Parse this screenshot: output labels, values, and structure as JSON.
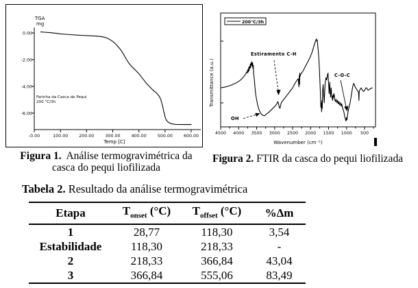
{
  "figure1_caption": {
    "label": "Figura 1.",
    "line1": "Análise termogravimétrica da",
    "line2": "casca do pequi liofilizada"
  },
  "figure2_caption": {
    "label": "Figura 2.",
    "text": " FTIR da  casca do pequi liofilizada"
  },
  "table": {
    "title_label": "Tabela 2.",
    "title_text": " Resultado da análise termogravimétrica",
    "headers": {
      "etapa": "Etapa",
      "tonset": {
        "pre": "T",
        "sub": "onset",
        "post": " (°C)"
      },
      "toffset": {
        "pre": "T",
        "sub": "offset",
        "post": " (°C)"
      },
      "dm": "%Δm"
    },
    "rows": [
      [
        "1",
        "28,77",
        "118,30",
        "3,54"
      ],
      [
        "Estabilidade",
        "118,30",
        "218,33",
        "-"
      ],
      [
        "2",
        "218,33",
        "366,84",
        "43,04"
      ],
      [
        "3",
        "366,84",
        "555,06",
        "83,49"
      ]
    ]
  },
  "chart_data": [
    {
      "type": "line",
      "title": "TGA",
      "y_axis_title_line1": "TGA",
      "y_axis_title_line2": "mg",
      "xlabel": "Temp  [C]",
      "ylabel": "TGA (mg)",
      "xlim": [
        0,
        600
      ],
      "ylim": [
        -7,
        0.5
      ],
      "x_ticks": [
        "-0.00",
        "100.00",
        "200.00",
        "300.00",
        "400.00",
        "500.00",
        "600.00"
      ],
      "y_ticks": [
        "0.00",
        "-2.00",
        "-4.00",
        "-6.00"
      ],
      "annotation": [
        "Farinha da Casca de Pequi",
        "200 °C/3h"
      ],
      "grid": false,
      "series": [
        {
          "name": "Farinha da Casca de Pequi 200 °C/3h",
          "points": [
            [
              25,
              0.07
            ],
            [
              40,
              0.05
            ],
            [
              60,
              0.02
            ],
            [
              80,
              -0.02
            ],
            [
              100,
              -0.07
            ],
            [
              120,
              -0.1
            ],
            [
              140,
              -0.13
            ],
            [
              160,
              -0.16
            ],
            [
              180,
              -0.18
            ],
            [
              200,
              -0.2
            ],
            [
              220,
              -0.22
            ],
            [
              240,
              -0.24
            ],
            [
              255,
              -0.27
            ],
            [
              270,
              -0.33
            ],
            [
              285,
              -0.45
            ],
            [
              300,
              -0.63
            ],
            [
              315,
              -0.9
            ],
            [
              330,
              -1.25
            ],
            [
              340,
              -1.55
            ],
            [
              350,
              -1.9
            ],
            [
              358,
              -2.15
            ],
            [
              365,
              -2.35
            ],
            [
              372,
              -2.5
            ],
            [
              380,
              -2.65
            ],
            [
              390,
              -2.85
            ],
            [
              400,
              -3.05
            ],
            [
              410,
              -3.3
            ],
            [
              420,
              -3.55
            ],
            [
              430,
              -3.8
            ],
            [
              440,
              -4.0
            ],
            [
              450,
              -4.2
            ],
            [
              458,
              -4.35
            ],
            [
              465,
              -4.45
            ],
            [
              472,
              -4.6
            ],
            [
              478,
              -4.75
            ],
            [
              483,
              -4.95
            ],
            [
              487,
              -5.2
            ],
            [
              491,
              -5.5
            ],
            [
              495,
              -5.85
            ],
            [
              499,
              -6.2
            ],
            [
              503,
              -6.45
            ],
            [
              508,
              -6.6
            ],
            [
              515,
              -6.72
            ],
            [
              525,
              -6.8
            ],
            [
              540,
              -6.84
            ],
            [
              560,
              -6.85
            ],
            [
              600,
              -6.85
            ]
          ]
        }
      ]
    },
    {
      "type": "line",
      "title": "FTIR",
      "xlabel": "Wavenumber (cm⁻¹)",
      "ylabel": "Transmittance (a.u.)",
      "x_axis_reversed": true,
      "xlim": [
        4600,
        350
      ],
      "x_ticks": [
        "4500",
        "4000",
        "3500",
        "3000",
        "2500",
        "2000",
        "1500",
        "1000",
        "500"
      ],
      "legend": [
        "200°C/3h"
      ],
      "legend_position": "top-left",
      "annotations": {
        "estiramento": "Estiramento C-H",
        "oh": "OH",
        "coc": "C-O-C"
      },
      "grid": false,
      "series": [
        {
          "name": "200°C/3h",
          "points": [
            [
              4600,
              33
            ],
            [
              4450,
              34
            ],
            [
              4300,
              35.5
            ],
            [
              4150,
              37.5
            ],
            [
              4050,
              39.5
            ],
            [
              3980,
              41.5
            ],
            [
              3930,
              43.5
            ],
            [
              3890,
              45
            ],
            [
              3860,
              47
            ],
            [
              3840,
              46
            ],
            [
              3830,
              49
            ],
            [
              3815,
              47
            ],
            [
              3800,
              51
            ],
            [
              3790,
              48
            ],
            [
              3780,
              52
            ],
            [
              3765,
              50
            ],
            [
              3755,
              54
            ],
            [
              3745,
              51
            ],
            [
              3735,
              55
            ],
            [
              3720,
              53
            ],
            [
              3710,
              56
            ],
            [
              3700,
              52
            ],
            [
              3690,
              55
            ],
            [
              3680,
              50
            ],
            [
              3670,
              53
            ],
            [
              3660,
              46
            ],
            [
              3640,
              40
            ],
            [
              3620,
              33
            ],
            [
              3600,
              27
            ],
            [
              3560,
              20
            ],
            [
              3520,
              15
            ],
            [
              3480,
              12
            ],
            [
              3440,
              10
            ],
            [
              3400,
              9
            ],
            [
              3360,
              8.5
            ],
            [
              3330,
              9
            ],
            [
              3300,
              10
            ],
            [
              3250,
              11
            ],
            [
              3200,
              12.5
            ],
            [
              3150,
              14
            ],
            [
              3100,
              15.5
            ],
            [
              3050,
              17
            ],
            [
              3000,
              19
            ],
            [
              2970,
              21
            ],
            [
              2950,
              19
            ],
            [
              2930,
              16
            ],
            [
              2910,
              15
            ],
            [
              2890,
              18
            ],
            [
              2870,
              20
            ],
            [
              2850,
              21
            ],
            [
              2800,
              23
            ],
            [
              2750,
              25
            ],
            [
              2700,
              27
            ],
            [
              2650,
              29
            ],
            [
              2600,
              31
            ],
            [
              2550,
              33
            ],
            [
              2500,
              36
            ],
            [
              2460,
              38
            ],
            [
              2420,
              40
            ],
            [
              2390,
              41
            ],
            [
              2370,
              34
            ],
            [
              2360,
              44
            ],
            [
              2350,
              36
            ],
            [
              2345,
              46
            ],
            [
              2340,
              43
            ],
            [
              2320,
              45
            ],
            [
              2300,
              46
            ],
            [
              2250,
              48
            ],
            [
              2200,
              51
            ],
            [
              2150,
              54
            ],
            [
              2100,
              57
            ],
            [
              2050,
              60
            ],
            [
              2000,
              64
            ],
            [
              1970,
              67
            ],
            [
              1940,
              70
            ],
            [
              1910,
              73
            ],
            [
              1890,
              75
            ],
            [
              1870,
              76
            ],
            [
              1860,
              74
            ],
            [
              1850,
              75
            ],
            [
              1840,
              72
            ],
            [
              1820,
              66
            ],
            [
              1800,
              58
            ],
            [
              1780,
              45
            ],
            [
              1760,
              30
            ],
            [
              1745,
              16
            ],
            [
              1735,
              20
            ],
            [
              1725,
              12
            ],
            [
              1715,
              22
            ],
            [
              1705,
              15
            ],
            [
              1695,
              30
            ],
            [
              1680,
              36
            ],
            [
              1665,
              28
            ],
            [
              1650,
              20
            ],
            [
              1635,
              30
            ],
            [
              1620,
              38
            ],
            [
              1600,
              42
            ],
            [
              1580,
              40
            ],
            [
              1560,
              44
            ],
            [
              1540,
              46
            ],
            [
              1530,
              40
            ],
            [
              1520,
              34
            ],
            [
              1510,
              28
            ],
            [
              1500,
              33
            ],
            [
              1490,
              38
            ],
            [
              1480,
              30
            ],
            [
              1470,
              25
            ],
            [
              1460,
              29
            ],
            [
              1450,
              33
            ],
            [
              1440,
              28
            ],
            [
              1430,
              24
            ],
            [
              1420,
              26
            ],
            [
              1410,
              22
            ],
            [
              1400,
              24
            ],
            [
              1390,
              27
            ],
            [
              1380,
              25
            ],
            [
              1370,
              28
            ],
            [
              1360,
              26
            ],
            [
              1350,
              23
            ],
            [
              1330,
              21
            ],
            [
              1310,
              23
            ],
            [
              1290,
              20
            ],
            [
              1270,
              22
            ],
            [
              1250,
              19
            ],
            [
              1230,
              21
            ],
            [
              1210,
              18
            ],
            [
              1190,
              20
            ],
            [
              1170,
              17
            ],
            [
              1150,
              19
            ],
            [
              1130,
              16
            ],
            [
              1110,
              14
            ],
            [
              1090,
              12
            ],
            [
              1070,
              9
            ],
            [
              1050,
              6
            ],
            [
              1030,
              4
            ],
            [
              1015,
              7
            ],
            [
              1000,
              5
            ],
            [
              985,
              9
            ],
            [
              970,
              12
            ],
            [
              950,
              15
            ],
            [
              930,
              18
            ],
            [
              910,
              20
            ],
            [
              890,
              24
            ],
            [
              870,
              28
            ],
            [
              850,
              32
            ],
            [
              830,
              35
            ],
            [
              810,
              37
            ],
            [
              790,
              36
            ],
            [
              770,
              34
            ],
            [
              750,
              33
            ],
            [
              730,
              32
            ],
            [
              710,
              31
            ],
            [
              690,
              30
            ],
            [
              670,
              29
            ],
            [
              660,
              22
            ],
            [
              655,
              28
            ],
            [
              650,
              30
            ],
            [
              640,
              31
            ],
            [
              620,
              32
            ],
            [
              600,
              33
            ],
            [
              580,
              32
            ],
            [
              560,
              31
            ],
            [
              540,
              30
            ],
            [
              520,
              30
            ],
            [
              500,
              31
            ],
            [
              480,
              32
            ],
            [
              460,
              33
            ],
            [
              440,
              33
            ],
            [
              420,
              32
            ],
            [
              400,
              31
            ],
            [
              380,
              31
            ],
            [
              360,
              32
            ],
            [
              340,
              32
            ],
            [
              300,
              33
            ],
            [
              280,
              33
            ]
          ]
        }
      ]
    }
  ]
}
